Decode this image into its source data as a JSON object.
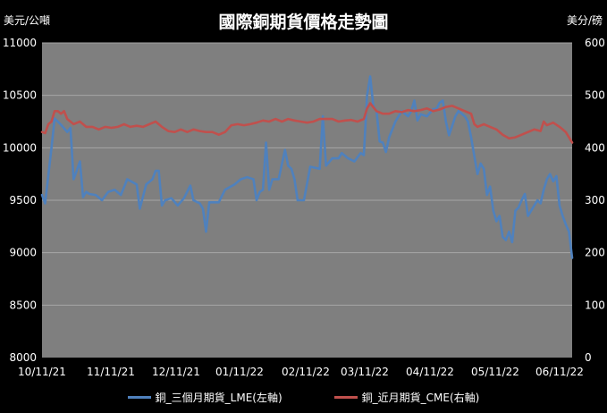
{
  "chart_data": {
    "type": "line",
    "title": "國際銅期貨價格走勢圖",
    "left_unit": "美元/公噸",
    "right_unit": "美分/磅",
    "x_ticks": [
      "10/11/21",
      "11/11/21",
      "12/11/21",
      "01/11/22",
      "02/11/22",
      "03/11/22",
      "04/11/22",
      "05/11/22",
      "06/11/22"
    ],
    "y_left": {
      "range": [
        8000,
        11000
      ],
      "ticks": [
        8000,
        8500,
        9000,
        9500,
        10000,
        10500,
        11000
      ]
    },
    "y_right": {
      "range": [
        0,
        600
      ],
      "ticks": [
        0,
        100,
        200,
        300,
        400,
        500,
        600
      ]
    },
    "grid": true,
    "legend_position": "bottom",
    "colors": {
      "background": "#000000",
      "plot_area": "#7f7f7f",
      "grid": "#a6a6a6",
      "text": "#ffffff"
    },
    "series": [
      {
        "name": "銅_三個月期貨_LME(左軸)",
        "axis": "left",
        "color": "#4f81bd",
        "points": [
          [
            0,
            9550
          ],
          [
            1,
            9470
          ],
          [
            3,
            10000
          ],
          [
            4,
            10280
          ],
          [
            6,
            10220
          ],
          [
            8,
            10150
          ],
          [
            9,
            10190
          ],
          [
            10,
            9700
          ],
          [
            11,
            9780
          ],
          [
            12,
            9870
          ],
          [
            13,
            9530
          ],
          [
            14,
            9580
          ],
          [
            15,
            9560
          ],
          [
            17,
            9550
          ],
          [
            19,
            9500
          ],
          [
            21,
            9580
          ],
          [
            23,
            9600
          ],
          [
            25,
            9550
          ],
          [
            27,
            9700
          ],
          [
            30,
            9650
          ],
          [
            31,
            9420
          ],
          [
            33,
            9650
          ],
          [
            35,
            9700
          ],
          [
            36,
            9780
          ],
          [
            37,
            9780
          ],
          [
            38,
            9450
          ],
          [
            39,
            9500
          ],
          [
            41,
            9520
          ],
          [
            43,
            9450
          ],
          [
            45,
            9520
          ],
          [
            47,
            9640
          ],
          [
            48,
            9500
          ],
          [
            50,
            9470
          ],
          [
            51,
            9420
          ],
          [
            52,
            9200
          ],
          [
            53,
            9480
          ],
          [
            56,
            9480
          ],
          [
            58,
            9600
          ],
          [
            61,
            9650
          ],
          [
            63,
            9700
          ],
          [
            65,
            9720
          ],
          [
            67,
            9700
          ],
          [
            68,
            9500
          ],
          [
            69,
            9580
          ],
          [
            70,
            9600
          ],
          [
            71,
            10050
          ],
          [
            72,
            9600
          ],
          [
            73,
            9700
          ],
          [
            75,
            9700
          ],
          [
            77,
            9980
          ],
          [
            78,
            9830
          ],
          [
            79,
            9800
          ],
          [
            80,
            9700
          ],
          [
            81,
            9500
          ],
          [
            83,
            9500
          ],
          [
            85,
            9820
          ],
          [
            88,
            9800
          ],
          [
            89,
            10300
          ],
          [
            90,
            9830
          ],
          [
            92,
            9900
          ],
          [
            94,
            9900
          ],
          [
            95,
            9950
          ],
          [
            97,
            9900
          ],
          [
            99,
            9870
          ],
          [
            101,
            9950
          ],
          [
            102,
            9930
          ],
          [
            103,
            10500
          ],
          [
            104,
            10680
          ],
          [
            105,
            10400
          ],
          [
            106,
            10350
          ],
          [
            107,
            10060
          ],
          [
            108,
            10050
          ],
          [
            109,
            9960
          ],
          [
            110,
            10100
          ],
          [
            112,
            10250
          ],
          [
            114,
            10350
          ],
          [
            116,
            10300
          ],
          [
            117,
            10350
          ],
          [
            118,
            10450
          ],
          [
            119,
            10260
          ],
          [
            120,
            10320
          ],
          [
            122,
            10300
          ],
          [
            124,
            10370
          ],
          [
            125,
            10370
          ],
          [
            126,
            10430
          ],
          [
            127,
            10450
          ],
          [
            128,
            10250
          ],
          [
            129,
            10120
          ],
          [
            131,
            10300
          ],
          [
            132,
            10350
          ],
          [
            134,
            10300
          ],
          [
            135,
            10250
          ],
          [
            136,
            10100
          ],
          [
            137,
            9920
          ],
          [
            138,
            9750
          ],
          [
            139,
            9850
          ],
          [
            140,
            9800
          ],
          [
            141,
            9550
          ],
          [
            142,
            9630
          ],
          [
            143,
            9400
          ],
          [
            144,
            9300
          ],
          [
            145,
            9350
          ],
          [
            146,
            9150
          ],
          [
            147,
            9120
          ],
          [
            148,
            9200
          ],
          [
            149,
            9100
          ],
          [
            150,
            9400
          ],
          [
            151,
            9430
          ],
          [
            152,
            9500
          ],
          [
            153,
            9560
          ],
          [
            154,
            9350
          ],
          [
            155,
            9400
          ],
          [
            156,
            9450
          ],
          [
            157,
            9500
          ],
          [
            158,
            9470
          ],
          [
            159,
            9600
          ],
          [
            160,
            9700
          ],
          [
            161,
            9750
          ],
          [
            162,
            9680
          ],
          [
            163,
            9730
          ],
          [
            164,
            9450
          ],
          [
            165,
            9350
          ],
          [
            166,
            9270
          ],
          [
            167,
            9200
          ],
          [
            168,
            8950
          ]
        ]
      },
      {
        "name": "銅_近月期貨_CME(右軸)",
        "axis": "right",
        "color": "#c0504d",
        "points": [
          [
            0,
            430
          ],
          [
            1,
            428
          ],
          [
            2,
            445
          ],
          [
            3,
            450
          ],
          [
            4,
            470
          ],
          [
            5,
            470
          ],
          [
            6,
            465
          ],
          [
            7,
            470
          ],
          [
            8,
            455
          ],
          [
            9,
            450
          ],
          [
            10,
            445
          ],
          [
            12,
            450
          ],
          [
            14,
            440
          ],
          [
            16,
            440
          ],
          [
            18,
            435
          ],
          [
            20,
            440
          ],
          [
            22,
            438
          ],
          [
            24,
            440
          ],
          [
            26,
            445
          ],
          [
            28,
            440
          ],
          [
            30,
            442
          ],
          [
            32,
            440
          ],
          [
            34,
            445
          ],
          [
            36,
            450
          ],
          [
            38,
            440
          ],
          [
            40,
            432
          ],
          [
            42,
            430
          ],
          [
            44,
            435
          ],
          [
            46,
            430
          ],
          [
            48,
            435
          ],
          [
            50,
            432
          ],
          [
            52,
            430
          ],
          [
            54,
            430
          ],
          [
            56,
            425
          ],
          [
            58,
            430
          ],
          [
            60,
            443
          ],
          [
            62,
            445
          ],
          [
            64,
            443
          ],
          [
            66,
            445
          ],
          [
            68,
            448
          ],
          [
            70,
            452
          ],
          [
            72,
            450
          ],
          [
            74,
            455
          ],
          [
            76,
            450
          ],
          [
            78,
            455
          ],
          [
            80,
            452
          ],
          [
            82,
            450
          ],
          [
            84,
            448
          ],
          [
            86,
            450
          ],
          [
            88,
            455
          ],
          [
            90,
            455
          ],
          [
            92,
            455
          ],
          [
            94,
            450
          ],
          [
            96,
            452
          ],
          [
            98,
            453
          ],
          [
            100,
            450
          ],
          [
            102,
            455
          ],
          [
            103,
            475
          ],
          [
            104,
            485
          ],
          [
            106,
            470
          ],
          [
            108,
            465
          ],
          [
            110,
            465
          ],
          [
            112,
            470
          ],
          [
            114,
            468
          ],
          [
            116,
            472
          ],
          [
            118,
            470
          ],
          [
            120,
            472
          ],
          [
            122,
            475
          ],
          [
            124,
            470
          ],
          [
            126,
            473
          ],
          [
            128,
            478
          ],
          [
            130,
            480
          ],
          [
            132,
            475
          ],
          [
            134,
            470
          ],
          [
            136,
            465
          ],
          [
            137,
            445
          ],
          [
            138,
            440
          ],
          [
            140,
            445
          ],
          [
            142,
            440
          ],
          [
            144,
            435
          ],
          [
            146,
            425
          ],
          [
            148,
            418
          ],
          [
            150,
            420
          ],
          [
            152,
            425
          ],
          [
            154,
            430
          ],
          [
            156,
            435
          ],
          [
            158,
            432
          ],
          [
            159,
            450
          ],
          [
            160,
            443
          ],
          [
            162,
            448
          ],
          [
            164,
            440
          ],
          [
            165,
            435
          ],
          [
            166,
            430
          ],
          [
            168,
            410
          ]
        ]
      }
    ]
  }
}
